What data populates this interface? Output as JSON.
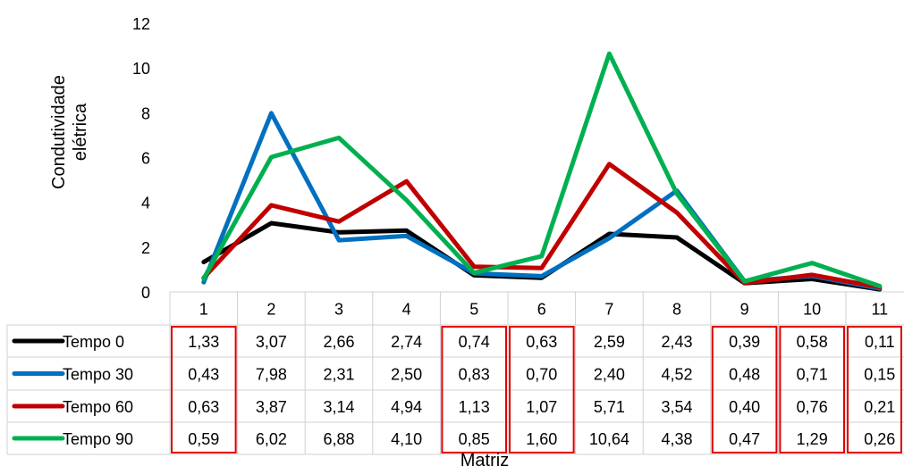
{
  "chart_data": {
    "type": "line",
    "ylabel_lines": [
      "Condutividade",
      "elétrica"
    ],
    "xlabel": "Matriz",
    "ylim": [
      0,
      12
    ],
    "yticks": [
      "0",
      "2",
      "4",
      "6",
      "8",
      "10",
      "12"
    ],
    "categories": [
      "1",
      "2",
      "3",
      "4",
      "5",
      "6",
      "7",
      "8",
      "9",
      "10",
      "11"
    ],
    "series": [
      {
        "name": "Tempo 0",
        "color": "#000000",
        "values": [
          1.33,
          3.07,
          2.66,
          2.74,
          0.74,
          0.63,
          2.59,
          2.43,
          0.39,
          0.58,
          0.11
        ],
        "labels": [
          "1,33",
          "3,07",
          "2,66",
          "2,74",
          "0,74",
          "0,63",
          "2,59",
          "2,43",
          "0,39",
          "0,58",
          "0,11"
        ]
      },
      {
        "name": "Tempo 30",
        "color": "#0070C0",
        "values": [
          0.43,
          7.98,
          2.31,
          2.5,
          0.83,
          0.7,
          2.4,
          4.52,
          0.48,
          0.71,
          0.15
        ],
        "labels": [
          "0,43",
          "7,98",
          "2,31",
          "2,50",
          "0,83",
          "0,70",
          "2,40",
          "4,52",
          "0,48",
          "0,71",
          "0,15"
        ]
      },
      {
        "name": "Tempo 60",
        "color": "#C00000",
        "values": [
          0.63,
          3.87,
          3.14,
          4.94,
          1.13,
          1.07,
          5.71,
          3.54,
          0.4,
          0.76,
          0.21
        ],
        "labels": [
          "0,63",
          "3,87",
          "3,14",
          "4,94",
          "1,13",
          "1,07",
          "5,71",
          "3,54",
          "0,40",
          "0,76",
          "0,21"
        ]
      },
      {
        "name": "Tempo 90",
        "color": "#00B050",
        "values": [
          0.59,
          6.02,
          6.88,
          4.1,
          0.85,
          1.6,
          10.64,
          4.38,
          0.47,
          1.29,
          0.26
        ],
        "labels": [
          "0,59",
          "6,02",
          "6,88",
          "4,10",
          "0,85",
          "1,60",
          "10,64",
          "4,38",
          "0,47",
          "1,29",
          "0,26"
        ]
      }
    ],
    "highlighted_columns": [
      "1",
      "5",
      "6",
      "9",
      "10",
      "11"
    ],
    "highlight_color": "#E00000",
    "data_table": true,
    "grid": false
  }
}
